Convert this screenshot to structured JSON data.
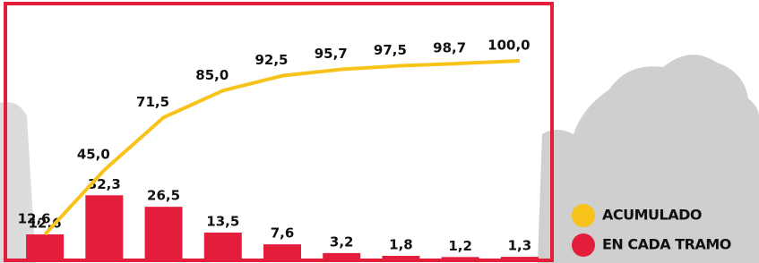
{
  "chart_data": {
    "type": "bar-line",
    "series": [
      {
        "name": "ACUMULADO",
        "color": "#f7c31a",
        "kind": "line",
        "values": [
          12.6,
          45.0,
          71.5,
          85.0,
          92.5,
          95.7,
          97.5,
          98.7,
          100.0
        ],
        "value_labels": [
          "12,6",
          "45,0",
          "71,5",
          "85,0",
          "92,5",
          "95,7",
          "97,5",
          "98,7",
          "100,0"
        ]
      },
      {
        "name": "EN CADA TRAMO",
        "color": "#e31d3a",
        "kind": "bar",
        "values": [
          12.6,
          32.3,
          26.5,
          13.5,
          7.6,
          3.2,
          1.8,
          1.2,
          1.3
        ],
        "value_labels": [
          "12,6",
          "32,3",
          "26,5",
          "13,5",
          "7,6",
          "3,2",
          "1,8",
          "1,2",
          "1,3"
        ]
      }
    ]
  }
}
